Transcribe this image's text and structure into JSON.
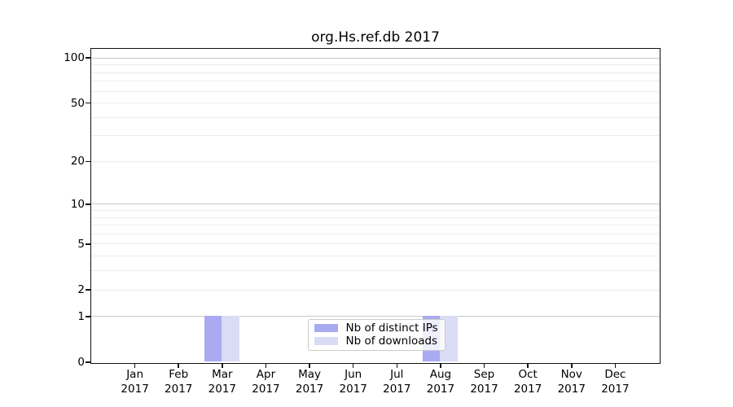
{
  "chart_data": {
    "type": "bar",
    "title": "org.Hs.ref.db 2017",
    "categories": [
      "Jan",
      "Feb",
      "Mar",
      "Apr",
      "May",
      "Jun",
      "Jul",
      "Aug",
      "Sep",
      "Oct",
      "Nov",
      "Dec"
    ],
    "category_year": "2017",
    "series": [
      {
        "name": "Nb of distinct IPs",
        "color": "#a9aaf2",
        "values": [
          0,
          0,
          1,
          0,
          0,
          0,
          0,
          1,
          0,
          0,
          0,
          0
        ]
      },
      {
        "name": "Nb of downloads",
        "color": "#dadbf5",
        "values": [
          0,
          0,
          1,
          0,
          0,
          0,
          0,
          1,
          0,
          0,
          0,
          0
        ]
      }
    ],
    "xlabel": "",
    "ylabel": "",
    "y_scale": "log1p",
    "y_ticks": [
      0,
      1,
      2,
      5,
      10,
      20,
      50,
      100
    ],
    "y_major_gridlines": [
      1,
      10,
      100
    ],
    "y_minor_gridlines": [
      2,
      3,
      4,
      5,
      6,
      7,
      8,
      9,
      20,
      30,
      40,
      50,
      60,
      70,
      80,
      90
    ],
    "ylim": [
      0,
      122
    ],
    "grid": "horizontal",
    "legend_position": "lower-center",
    "bar_layout": "paired-side-by-side"
  }
}
